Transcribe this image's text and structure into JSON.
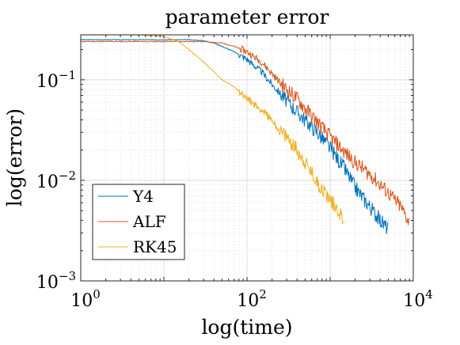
{
  "chart_data": {
    "type": "line",
    "title": "parameter error",
    "xlabel": "log(time)",
    "ylabel": "log(error)",
    "xscale": "log",
    "yscale": "log",
    "xlim": [
      1,
      10000
    ],
    "ylim": [
      0.001,
      0.28
    ],
    "grid": true,
    "minor_grid": true,
    "legend_position": "bottom-left",
    "x_ticks": [
      {
        "value": 1,
        "base": "10",
        "exp": "0"
      },
      {
        "value": 100,
        "base": "10",
        "exp": "2"
      },
      {
        "value": 10000,
        "base": "10",
        "exp": "4"
      }
    ],
    "y_ticks": [
      {
        "value": 0.001,
        "base": "10",
        "exp": "−3"
      },
      {
        "value": 0.01,
        "base": "10",
        "exp": "−2"
      },
      {
        "value": 0.1,
        "base": "10",
        "exp": "−1"
      }
    ],
    "series": [
      {
        "name": "Y4",
        "color": "#0072BD",
        "x": [
          1,
          3,
          10,
          20,
          30,
          40,
          50,
          70,
          100,
          150,
          200,
          300,
          400,
          500,
          700,
          1000,
          1500,
          2000,
          3000,
          4000,
          5000
        ],
        "y": [
          0.25,
          0.25,
          0.25,
          0.25,
          0.245,
          0.232,
          0.215,
          0.19,
          0.16,
          0.12,
          0.09,
          0.062,
          0.048,
          0.04,
          0.03,
          0.021,
          0.013,
          0.0085,
          0.0055,
          0.004,
          0.0033
        ]
      },
      {
        "name": "ALF",
        "color": "#D95319",
        "x": [
          1,
          3,
          10,
          20,
          30,
          50,
          70,
          100,
          150,
          200,
          300,
          400,
          500,
          700,
          1000,
          1500,
          2000,
          3000,
          5000,
          7000,
          9000
        ],
        "y": [
          0.24,
          0.24,
          0.24,
          0.24,
          0.24,
          0.232,
          0.215,
          0.19,
          0.15,
          0.115,
          0.08,
          0.065,
          0.052,
          0.038,
          0.027,
          0.019,
          0.015,
          0.0115,
          0.0075,
          0.0055,
          0.0038
        ]
      },
      {
        "name": "RK45",
        "color": "#EDB120",
        "x": [
          1,
          5,
          10,
          15,
          20,
          30,
          40,
          50,
          70,
          100,
          150,
          200,
          250,
          300,
          400,
          500,
          700,
          1000,
          1300,
          1500
        ],
        "y": [
          0.28,
          0.28,
          0.27,
          0.24,
          0.2,
          0.15,
          0.12,
          0.1,
          0.085,
          0.065,
          0.05,
          0.04,
          0.03,
          0.027,
          0.02,
          0.015,
          0.0095,
          0.0065,
          0.0048,
          0.0038
        ]
      }
    ]
  }
}
